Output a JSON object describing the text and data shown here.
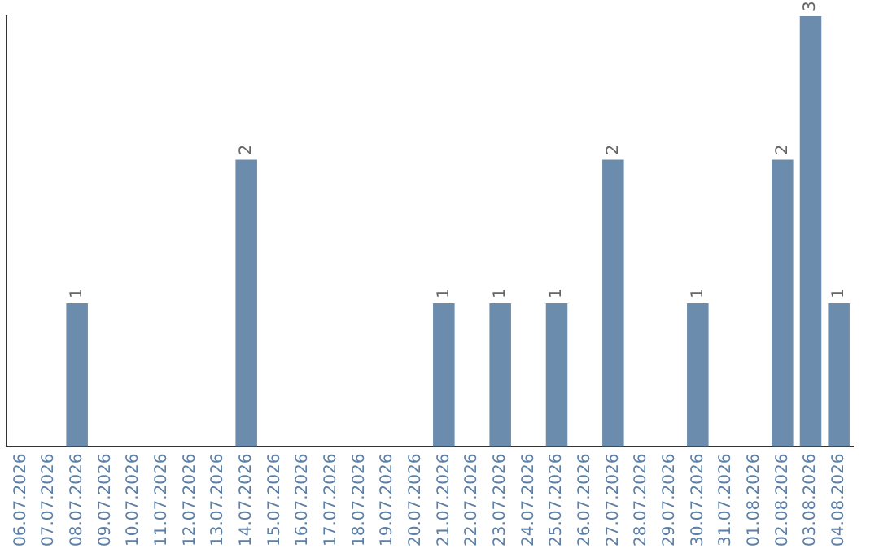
{
  "chart_data": {
    "type": "bar",
    "categories": [
      "06.07.2026",
      "07.07.2026",
      "08.07.2026",
      "09.07.2026",
      "10.07.2026",
      "11.07.2026",
      "12.07.2026",
      "13.07.2026",
      "14.07.2026",
      "15.07.2026",
      "16.07.2026",
      "17.07.2026",
      "18.07.2026",
      "19.07.2026",
      "20.07.2026",
      "21.07.2026",
      "22.07.2026",
      "23.07.2026",
      "24.07.2026",
      "25.07.2026",
      "26.07.2026",
      "27.07.2026",
      "28.07.2026",
      "29.07.2026",
      "30.07.2026",
      "31.07.2026",
      "01.08.2026",
      "02.08.2026",
      "03.08.2026",
      "04.08.2026"
    ],
    "values": [
      0,
      0,
      1,
      0,
      0,
      0,
      0,
      0,
      2,
      0,
      0,
      0,
      0,
      0,
      0,
      1,
      0,
      1,
      0,
      1,
      0,
      2,
      0,
      0,
      1,
      0,
      0,
      2,
      3,
      1
    ],
    "value_labels": [
      null,
      null,
      "1",
      null,
      null,
      null,
      null,
      null,
      "2",
      null,
      null,
      null,
      null,
      null,
      null,
      "1",
      null,
      "1",
      null,
      "1",
      null,
      "2",
      null,
      null,
      "1",
      null,
      null,
      "2",
      "3",
      "1"
    ],
    "color": "#6b8cad",
    "grid": false,
    "legend": false
  }
}
